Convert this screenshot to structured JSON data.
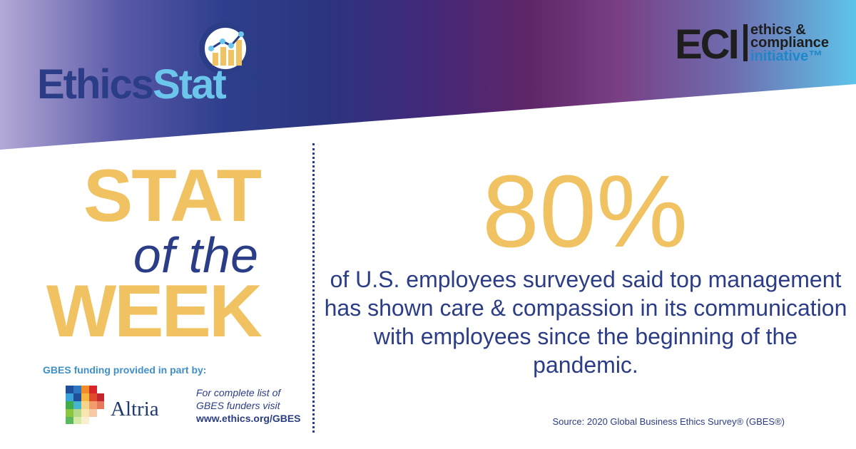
{
  "brand": {
    "ethics_word": "Ethics",
    "stat_word": "Stat",
    "eci_letters": "ECI",
    "eci_line1": "ethics &",
    "eci_line2": "compliance",
    "eci_line3": "initiative™"
  },
  "headline": {
    "stat": "STAT",
    "of_the": "of the",
    "week": "WEEK"
  },
  "main": {
    "percentage": "80%",
    "statement": "of U.S. employees surveyed said top management has shown care & compassion in its communication with employees since the beginning of the pandemic.",
    "source": "Source: 2020 Global Business Ethics Survey® (GBES®)"
  },
  "sponsor": {
    "funding_label": "GBES funding provided in part by:",
    "sponsor_name": "Altria",
    "funders_line1": "For complete list of",
    "funders_line2": "GBES funders visit",
    "funders_url": "www.ethics.org/GBES"
  },
  "colors": {
    "gold": "#f0c262",
    "navy": "#2b3d86",
    "sky": "#6cc6ec"
  },
  "icons": [
    "magnifier-chart-icon",
    "altria-mosaic-icon"
  ]
}
